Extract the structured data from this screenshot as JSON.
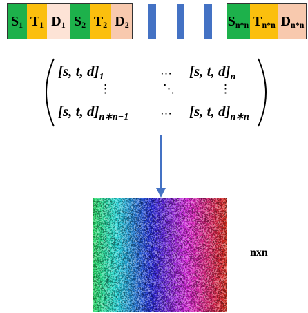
{
  "sequence": {
    "cells": [
      {
        "letter": "S",
        "sub": "1",
        "color": "#1db14b"
      },
      {
        "letter": "T",
        "sub": "1",
        "color": "#fbbf0e"
      },
      {
        "letter": "D",
        "sub": "1",
        "color": "#fde3d6"
      },
      {
        "letter": "S",
        "sub": "2",
        "color": "#1db14b"
      },
      {
        "letter": "T",
        "sub": "2",
        "color": "#fbbf0e"
      },
      {
        "letter": "D",
        "sub": "2",
        "color": "#f8c9ae"
      }
    ],
    "end_cells": [
      {
        "letter": "S",
        "sub": "n*n",
        "color": "#1db14b"
      },
      {
        "letter": "T",
        "sub": "n*n",
        "color": "#fbbf0e"
      },
      {
        "letter": "D",
        "sub": "n*n",
        "color": "#f8c9ae"
      }
    ],
    "gap_bar_color": "#4472c4"
  },
  "matrix": {
    "top_left": "[s, t, d]",
    "top_left_sub": "1",
    "top_right": "[s, t, d]",
    "top_right_sub": "n",
    "bottom_left": "[s, t, d]",
    "bottom_left_sub": "n∗n−1",
    "bottom_right": "[s, t, d]",
    "bottom_right_sub": "n∗n",
    "hdots": "⋯",
    "vdots": "⋮",
    "ddots": "⋱"
  },
  "arrow_color": "#4472c4",
  "image_label": "nxn"
}
